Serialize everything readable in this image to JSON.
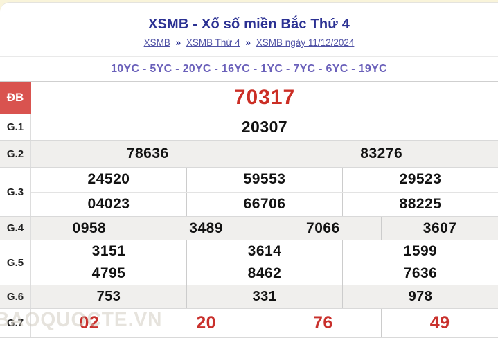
{
  "page": {
    "title": "XSMB - Xổ số miền Bắc Thứ 4",
    "breadcrumb": {
      "items": [
        "XSMB",
        "XSMB Thứ 4",
        "XSMB ngày 11/12/2024"
      ],
      "sep": "»"
    },
    "yc_line": "10YC - 5YC - 20YC - 16YC - 1YC - 7YC - 6YC - 19YC",
    "watermark": "BAOQUOCTE.VN"
  },
  "colors": {
    "title_navy": "#2b3193",
    "link_purple": "#5153a6",
    "yc_purple": "#6a60ba",
    "special_prize_red": "#cb2e25",
    "g7_red": "#c9302c",
    "db_label_bg": "#d9534f",
    "alt_row_bg": "#f0efed"
  },
  "results": {
    "db": {
      "label": "ĐB",
      "rows": [
        [
          "70317"
        ]
      ]
    },
    "g1": {
      "label": "G.1",
      "rows": [
        [
          "20307"
        ]
      ]
    },
    "g2": {
      "label": "G.2",
      "rows": [
        [
          "78636",
          "83276"
        ]
      ]
    },
    "g3": {
      "label": "G.3",
      "rows": [
        [
          "24520",
          "59553",
          "29523"
        ],
        [
          "04023",
          "66706",
          "88225"
        ]
      ]
    },
    "g4": {
      "label": "G.4",
      "rows": [
        [
          "0958",
          "3489",
          "7066",
          "3607"
        ]
      ]
    },
    "g5": {
      "label": "G.5",
      "rows": [
        [
          "3151",
          "3614",
          "1599"
        ],
        [
          "4795",
          "8462",
          "7636"
        ]
      ]
    },
    "g6": {
      "label": "G.6",
      "rows": [
        [
          "753",
          "331",
          "978"
        ]
      ]
    },
    "g7": {
      "label": "G.7",
      "rows": [
        [
          "02",
          "20",
          "76",
          "49"
        ]
      ]
    }
  }
}
